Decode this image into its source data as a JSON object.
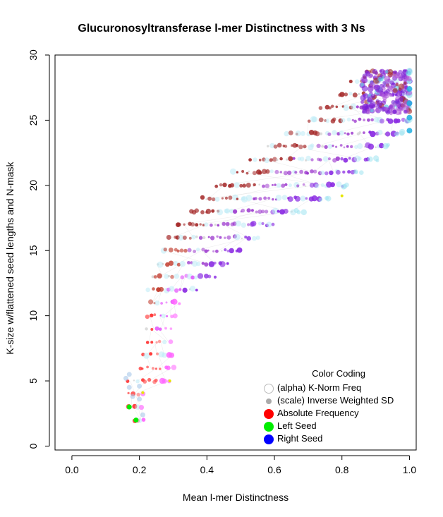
{
  "chart_data": {
    "type": "scatter",
    "title": "Glucuronosyltransferase l-mer Distinctness with 3 Ns",
    "xlabel": "Mean l-mer Distinctness",
    "ylabel": "K-size w/flattened seed lengths and N-mask",
    "xlim": [
      -0.05,
      1.02
    ],
    "ylim": [
      -0.3,
      30.0
    ],
    "xticks": [
      "0.0",
      "0.2",
      "0.4",
      "0.6",
      "0.8",
      "1.0"
    ],
    "xtick_values": [
      0,
      0.2,
      0.4,
      0.6,
      0.8,
      1.0
    ],
    "yticks": [
      "0",
      "5",
      "10",
      "15",
      "20",
      "25",
      "30"
    ],
    "ytick_values": [
      0,
      5,
      10,
      15,
      20,
      25,
      30
    ],
    "grid": false,
    "legend_position": "bottom-right",
    "rows": [
      {
        "k": 2,
        "x0": 0.19,
        "x1": 0.21
      },
      {
        "k": 3,
        "x0": 0.17,
        "x1": 0.21
      },
      {
        "k": 4,
        "x0": 0.17,
        "x1": 0.21
      },
      {
        "k": 5,
        "x0": 0.17,
        "x1": 0.29
      },
      {
        "k": 6,
        "x0": 0.2,
        "x1": 0.3
      },
      {
        "k": 7,
        "x0": 0.21,
        "x1": 0.3
      },
      {
        "k": 8,
        "x0": 0.22,
        "x1": 0.29
      },
      {
        "k": 9,
        "x0": 0.22,
        "x1": 0.29
      },
      {
        "k": 10,
        "x0": 0.22,
        "x1": 0.31
      },
      {
        "k": 11,
        "x0": 0.23,
        "x1": 0.32
      },
      {
        "k": 12,
        "x0": 0.23,
        "x1": 0.37
      },
      {
        "k": 13,
        "x0": 0.24,
        "x1": 0.42
      },
      {
        "k": 14,
        "x0": 0.25,
        "x1": 0.46
      },
      {
        "k": 15,
        "x0": 0.27,
        "x1": 0.5
      },
      {
        "k": 16,
        "x0": 0.29,
        "x1": 0.55
      },
      {
        "k": 17,
        "x0": 0.31,
        "x1": 0.6
      },
      {
        "k": 18,
        "x0": 0.35,
        "x1": 0.66
      },
      {
        "k": 19,
        "x0": 0.39,
        "x1": 0.73
      },
      {
        "k": 20,
        "x0": 0.43,
        "x1": 0.8
      },
      {
        "k": 21,
        "x0": 0.48,
        "x1": 0.84
      },
      {
        "k": 22,
        "x0": 0.53,
        "x1": 0.88
      },
      {
        "k": 23,
        "x0": 0.58,
        "x1": 0.92
      },
      {
        "k": 24,
        "x0": 0.64,
        "x1": 0.96
      },
      {
        "k": 25,
        "x0": 0.7,
        "x1": 0.99
      },
      {
        "k": 26,
        "x0": 0.74,
        "x1": 1.0
      },
      {
        "k": 27,
        "x0": 0.79,
        "x1": 1.0
      },
      {
        "k": 28,
        "x0": 0.83,
        "x1": 1.0
      },
      {
        "k": 28.7,
        "x0": 0.87,
        "x1": 1.0
      }
    ],
    "seed_points": [
      {
        "seed": "Left Seed",
        "x": 0.19,
        "y": 2.0
      },
      {
        "seed": "Left Seed",
        "x": 0.17,
        "y": 3.0
      },
      {
        "seed": "Right Seed",
        "x": 1.0,
        "y": 24.2
      },
      {
        "seed": "Right Seed",
        "x": 1.0,
        "y": 25.2
      },
      {
        "seed": "Right Seed",
        "x": 1.0,
        "y": 26.3
      },
      {
        "seed": "Right Seed",
        "x": 1.0,
        "y": 27.4
      }
    ]
  },
  "colors": {
    "absolute_frequency": "#ff0000",
    "left_seed": "#00ee00",
    "right_seed": "#0000ff",
    "norm_freq_outline": "#bbbbbb",
    "inverse_sd": "#aaaaaa",
    "purple": "#9400d3",
    "magenta": "#ff00ff",
    "cyan": "#00bfff",
    "yellow": "#e6e600"
  },
  "legend": {
    "title": "Color Coding",
    "items": [
      {
        "label": "(alpha) K-Norm Freq",
        "symbol": "open-circle"
      },
      {
        "label": "(scale) Inverse Weighted SD",
        "symbol": "small-gray-dot"
      },
      {
        "label": "Absolute Frequency",
        "symbol": "red-dot"
      },
      {
        "label": "Left Seed",
        "symbol": "green-dot"
      },
      {
        "label": "Right Seed",
        "symbol": "blue-dot"
      }
    ]
  }
}
